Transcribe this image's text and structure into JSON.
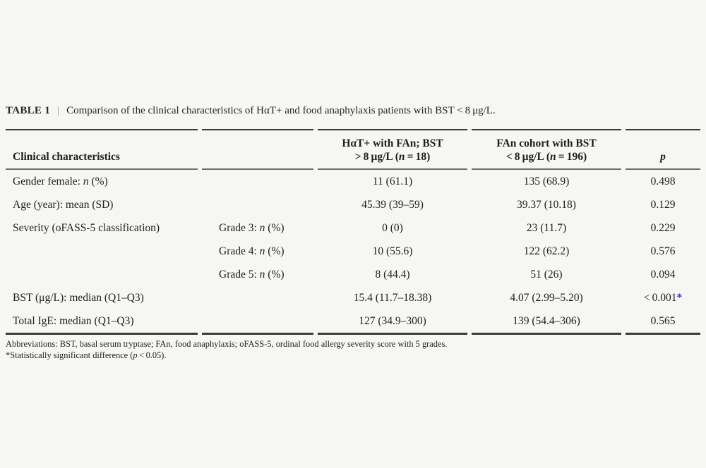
{
  "caption": {
    "label": "TABLE 1",
    "separator": "|",
    "text": "Comparison of the clinical characteristics of HαT+ and food anaphylaxis patients with BST < 8 μg/L."
  },
  "table": {
    "header": {
      "clinical": "Clinical characteristics",
      "sub": "",
      "hat": "HαT+ with FAn; BST{br}> 8 μg/L ({i}n{/i} = 18)",
      "fan": "FAn cohort with BST{br}< 8 μg/L ({i}n{/i} = 196)",
      "p": "{i}p{/i}"
    },
    "rows": [
      {
        "label": "Gender female: {i}n{/i} (%)",
        "sub": "",
        "hat": "11 (61.1)",
        "fan": "135 (68.9)",
        "p": "0.498"
      },
      {
        "label": "Age (year): mean (SD)",
        "sub": "",
        "hat": "45.39 (39–59)",
        "fan": "39.37 (10.18)",
        "p": "0.129"
      },
      {
        "label": "Severity (oFASS-5 classification)",
        "sub": "Grade 3: {i}n{/i} (%)",
        "hat": "0 (0)",
        "fan": "23 (11.7)",
        "p": "0.229"
      },
      {
        "label": "",
        "sub": "Grade 4: {i}n{/i} (%)",
        "hat": "10 (55.6)",
        "fan": "122 (62.2)",
        "p": "0.576"
      },
      {
        "label": "",
        "sub": "Grade 5: {i}n{/i} (%)",
        "hat": "8 (44.4)",
        "fan": "51 (26)",
        "p": "0.094"
      },
      {
        "label": "BST (μg/L): median (Q1–Q3)",
        "sub": "",
        "hat": "15.4 (11.7–18.38)",
        "fan": "4.07 (2.99–5.20)",
        "p": "< 0.001{star}"
      },
      {
        "label": "Total IgE: median (Q1–Q3)",
        "sub": "",
        "hat": "127 (34.9–300)",
        "fan": "139 (54.4–306)",
        "p": "0.565"
      }
    ]
  },
  "footnotes": {
    "abbreviations": "Abbreviations: BST, basal serum tryptase; FAn, food anaphylaxis; oFASS-5, ordinal food allergy severity score with 5 grades.",
    "significance": "*Statistically significant difference ({i}p{/i} < 0.05)."
  },
  "colors": {
    "background": "#f6f6f4",
    "text": "#1e1e1e",
    "rule_dark": "#3a3a3a",
    "rule_mid": "#6d6d6d",
    "star_blue": "#3342c4"
  }
}
